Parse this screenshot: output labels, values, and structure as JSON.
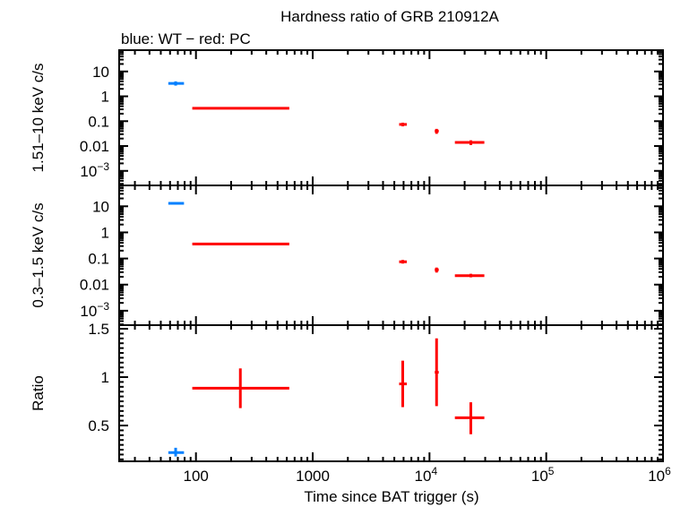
{
  "chart_data": {
    "type": "scatter",
    "title": "Hardness ratio of GRB 210912A",
    "subtitle": "blue: WT − red: PC",
    "xlabel": "Time since BAT trigger (s)",
    "xscale": "log",
    "xlim": [
      22,
      1000000
    ],
    "xticks": [
      {
        "base": "100",
        "exp": ""
      },
      {
        "base": "1000",
        "exp": ""
      },
      {
        "base": "10",
        "exp": "4"
      },
      {
        "base": "10",
        "exp": "5"
      },
      {
        "base": "10",
        "exp": "6"
      }
    ],
    "xtick_values": [
      100,
      1000,
      10000,
      100000,
      1000000
    ],
    "colors": {
      "WT": "#0080ff",
      "PC": "#ff0000",
      "axes": "#000000"
    },
    "panels": [
      {
        "ylabel": "1.51–10 keV c/s",
        "yscale": "log",
        "ylim": [
          0.00026,
          72
        ],
        "yticks": [
          {
            "base": "10",
            "exp": "",
            "v": 10
          },
          {
            "base": "1",
            "exp": "",
            "v": 1
          },
          {
            "base": "0.1",
            "exp": "",
            "v": 0.1
          },
          {
            "base": "0.01",
            "exp": "",
            "v": 0.01
          },
          {
            "base": "10",
            "exp": "−3",
            "v": 0.001
          }
        ],
        "series": [
          {
            "mode": "WT",
            "points": [
              {
                "x": 67,
                "xlo": 58,
                "xhi": 79,
                "y": 3.3,
                "ylo": 2.7,
                "yhi": 4.0
              }
            ]
          },
          {
            "mode": "PC",
            "points": [
              {
                "x": 240,
                "xlo": 93,
                "xhi": 630,
                "y": 0.33,
                "ylo": 0.3,
                "yhi": 0.37
              },
              {
                "x": 5900,
                "xlo": 5500,
                "xhi": 6400,
                "y": 0.074,
                "ylo": 0.062,
                "yhi": 0.087
              },
              {
                "x": 11500,
                "xlo": 11100,
                "xhi": 12000,
                "y": 0.04,
                "ylo": 0.031,
                "yhi": 0.049
              },
              {
                "x": 22600,
                "xlo": 16500,
                "xhi": 29500,
                "y": 0.014,
                "ylo": 0.011,
                "yhi": 0.017
              }
            ]
          }
        ]
      },
      {
        "ylabel": "0.3–1.5 keV c/s",
        "yscale": "log",
        "ylim": [
          0.00028,
          63
        ],
        "yticks": [
          {
            "base": "10",
            "exp": "",
            "v": 10
          },
          {
            "base": "1",
            "exp": "",
            "v": 1
          },
          {
            "base": "0.1",
            "exp": "",
            "v": 0.1
          },
          {
            "base": "0.01",
            "exp": "",
            "v": 0.01
          },
          {
            "base": "10",
            "exp": "−3",
            "v": 0.001
          }
        ],
        "series": [
          {
            "mode": "WT",
            "points": [
              {
                "x": 67,
                "xlo": 58,
                "xhi": 79,
                "y": 13,
                "ylo": 12,
                "yhi": 14.5
              }
            ]
          },
          {
            "mode": "PC",
            "points": [
              {
                "x": 240,
                "xlo": 93,
                "xhi": 630,
                "y": 0.36,
                "ylo": 0.33,
                "yhi": 0.39
              },
              {
                "x": 5900,
                "xlo": 5500,
                "xhi": 6400,
                "y": 0.075,
                "ylo": 0.064,
                "yhi": 0.088
              },
              {
                "x": 11500,
                "xlo": 11100,
                "xhi": 12000,
                "y": 0.037,
                "ylo": 0.029,
                "yhi": 0.045
              },
              {
                "x": 22600,
                "xlo": 16500,
                "xhi": 29500,
                "y": 0.022,
                "ylo": 0.019,
                "yhi": 0.026
              }
            ]
          }
        ]
      },
      {
        "ylabel": "Ratio",
        "yscale": "linear",
        "ylim": [
          0.13,
          1.537
        ],
        "yticks": [
          {
            "base": "1.5",
            "exp": "",
            "v": 1.5
          },
          {
            "base": "1",
            "exp": "",
            "v": 1
          },
          {
            "base": "0.5",
            "exp": "",
            "v": 0.5
          }
        ],
        "series": [
          {
            "mode": "WT",
            "points": [
              {
                "x": 67,
                "xlo": 58,
                "xhi": 79,
                "y": 0.22,
                "ylo": 0.18,
                "yhi": 0.27
              }
            ]
          },
          {
            "mode": "PC",
            "points": [
              {
                "x": 240,
                "xlo": 93,
                "xhi": 630,
                "y": 0.886,
                "ylo": 0.68,
                "yhi": 1.09
              },
              {
                "x": 5900,
                "xlo": 5500,
                "xhi": 6400,
                "y": 0.93,
                "ylo": 0.69,
                "yhi": 1.17
              },
              {
                "x": 11500,
                "xlo": 11100,
                "xhi": 12000,
                "y": 1.05,
                "ylo": 0.7,
                "yhi": 1.4
              },
              {
                "x": 22600,
                "xlo": 16500,
                "xhi": 29500,
                "y": 0.58,
                "ylo": 0.41,
                "yhi": 0.74
              }
            ]
          }
        ]
      }
    ]
  }
}
